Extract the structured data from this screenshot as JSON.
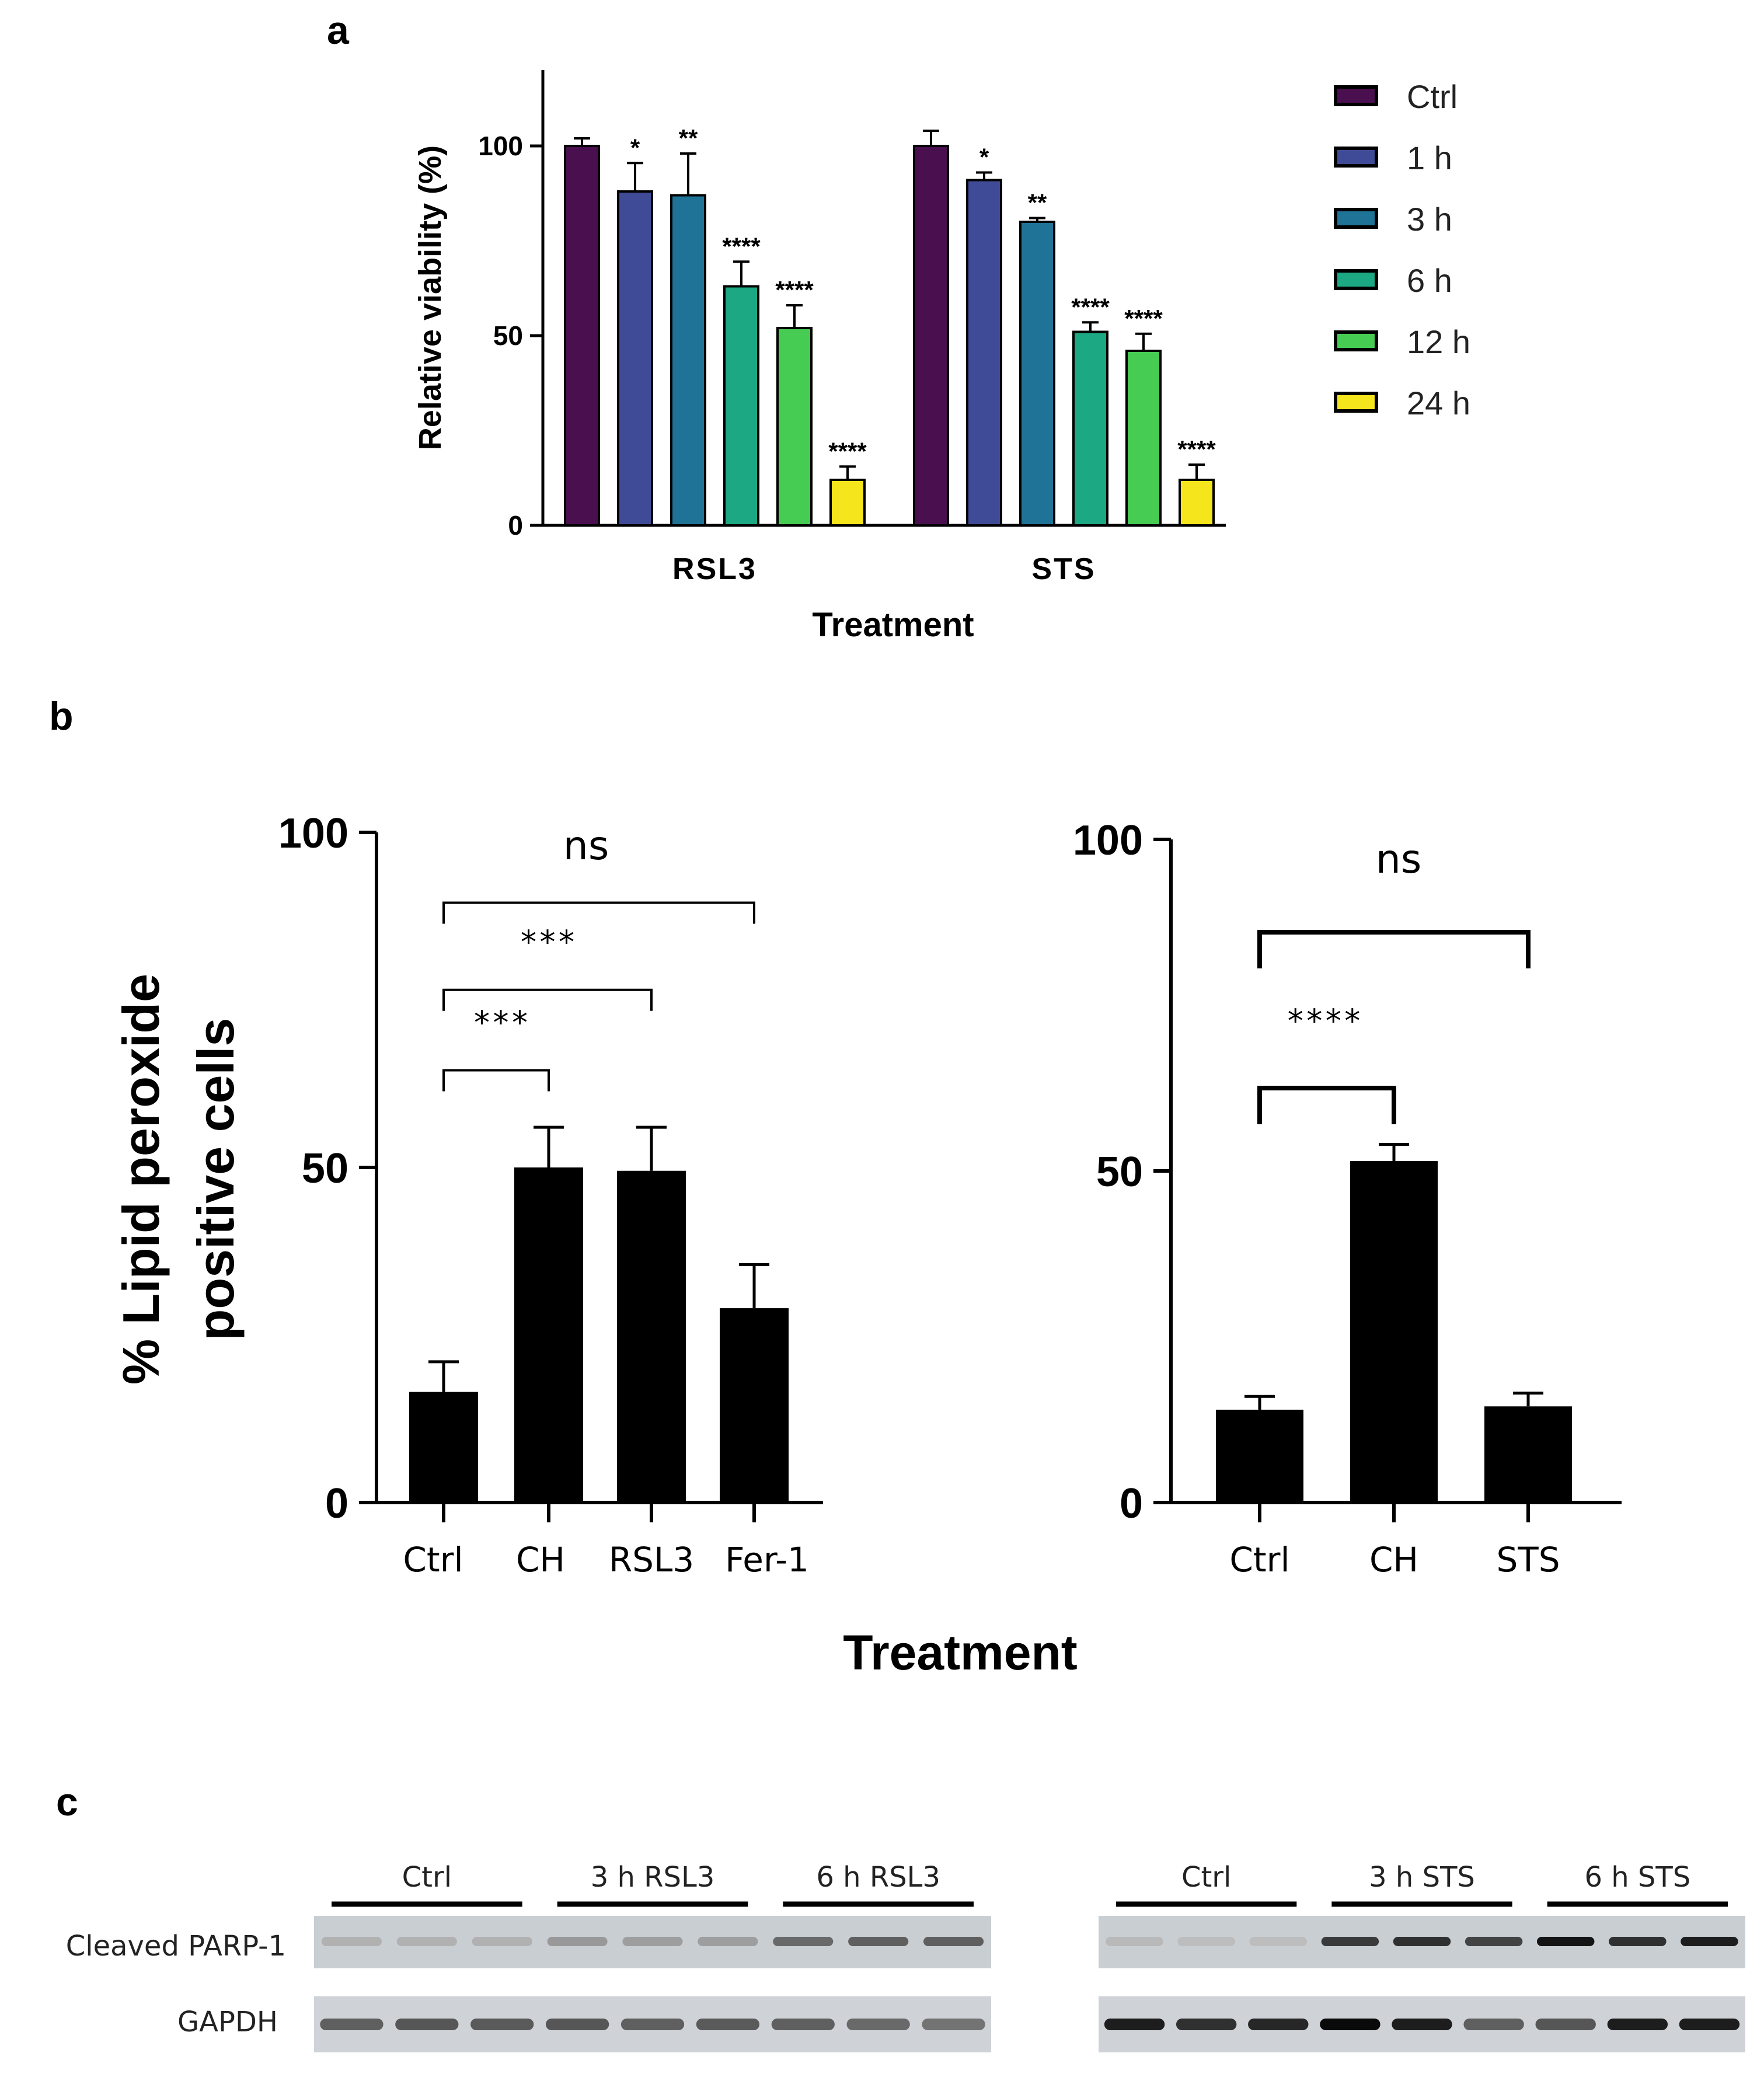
{
  "panels": {
    "a": "a",
    "b": "b",
    "c": "c"
  },
  "chart_data": [
    {
      "id": "viability",
      "type": "bar",
      "ylabel": "Relative viability (%)",
      "xlabel": "Treatment",
      "ylim": [
        0,
        120
      ],
      "yticks": [
        0,
        50,
        100
      ],
      "categories": [
        "RSL3",
        "STS"
      ],
      "series": [
        {
          "name": "Ctrl",
          "color": "#4a0f4f",
          "values": [
            100,
            100
          ],
          "errors": [
            2,
            4
          ],
          "sig": [
            "",
            ""
          ]
        },
        {
          "name": "1 h",
          "color": "#3f4b96",
          "values": [
            88,
            91
          ],
          "errors": [
            7.5,
            2
          ],
          "sig": [
            "*",
            "*"
          ]
        },
        {
          "name": "3 h",
          "color": "#1f7396",
          "values": [
            87,
            80
          ],
          "errors": [
            11,
            1
          ],
          "sig": [
            "**",
            "**"
          ]
        },
        {
          "name": "6 h",
          "color": "#1ba883",
          "values": [
            63,
            51
          ],
          "errors": [
            6.5,
            2.5
          ],
          "sig": [
            "****",
            "****"
          ]
        },
        {
          "name": "12 h",
          "color": "#47cc53",
          "values": [
            52,
            46
          ],
          "errors": [
            6,
            4.5
          ],
          "sig": [
            "****",
            "****"
          ]
        },
        {
          "name": "24 h",
          "color": "#f5e51c",
          "values": [
            12,
            12
          ],
          "errors": [
            3.5,
            4
          ],
          "sig": [
            "****",
            "****"
          ]
        }
      ]
    },
    {
      "id": "lipid-left",
      "type": "bar",
      "ylabel": "% Lipid peroxide positive cells",
      "ylabel_lines": [
        "% Lipid peroxide",
        "positive cells"
      ],
      "ylim": [
        0,
        100
      ],
      "yticks": [
        0,
        50,
        100
      ],
      "categories": [
        "Ctrl",
        "CH",
        "RSL3",
        "Fer-1"
      ],
      "values": [
        16.5,
        50,
        49.5,
        29
      ],
      "errors": [
        4.5,
        6,
        6.5,
        6.5
      ],
      "comparisons": [
        {
          "from": 0,
          "to": 1,
          "label": "***"
        },
        {
          "from": 0,
          "to": 2,
          "label": "***"
        },
        {
          "from": 0,
          "to": 3,
          "label": "ns"
        }
      ]
    },
    {
      "id": "lipid-right",
      "type": "bar",
      "ylim": [
        0,
        100
      ],
      "yticks": [
        0,
        50,
        100
      ],
      "categories": [
        "Ctrl",
        "CH",
        "STS"
      ],
      "values": [
        14,
        51.5,
        14.5
      ],
      "errors": [
        2,
        2.5,
        2
      ],
      "comparisons": [
        {
          "from": 0,
          "to": 1,
          "label": "****"
        },
        {
          "from": 0,
          "to": 2,
          "label": "ns"
        }
      ]
    }
  ],
  "shared_xlabel_b": "Treatment",
  "blots": {
    "row_labels": [
      "Cleaved PARP-1",
      "GAPDH"
    ],
    "left_groups": [
      "Ctrl",
      "3 h RSL3",
      "6 h RSL3"
    ],
    "right_groups": [
      "Ctrl",
      "3 h STS",
      "6 h STS"
    ],
    "left_parp_intensity": [
      0.12,
      0.12,
      0.12,
      0.25,
      0.22,
      0.22,
      0.5,
      0.55,
      0.55
    ],
    "left_gapdh_intensity": [
      0.55,
      0.6,
      0.58,
      0.6,
      0.55,
      0.58,
      0.55,
      0.5,
      0.45
    ],
    "right_parp_intensity": [
      0.08,
      0.06,
      0.06,
      0.75,
      0.8,
      0.7,
      0.95,
      0.8,
      0.9
    ],
    "right_gapdh_intensity": [
      0.9,
      0.8,
      0.85,
      1.0,
      0.9,
      0.55,
      0.6,
      0.9,
      0.9
    ]
  }
}
